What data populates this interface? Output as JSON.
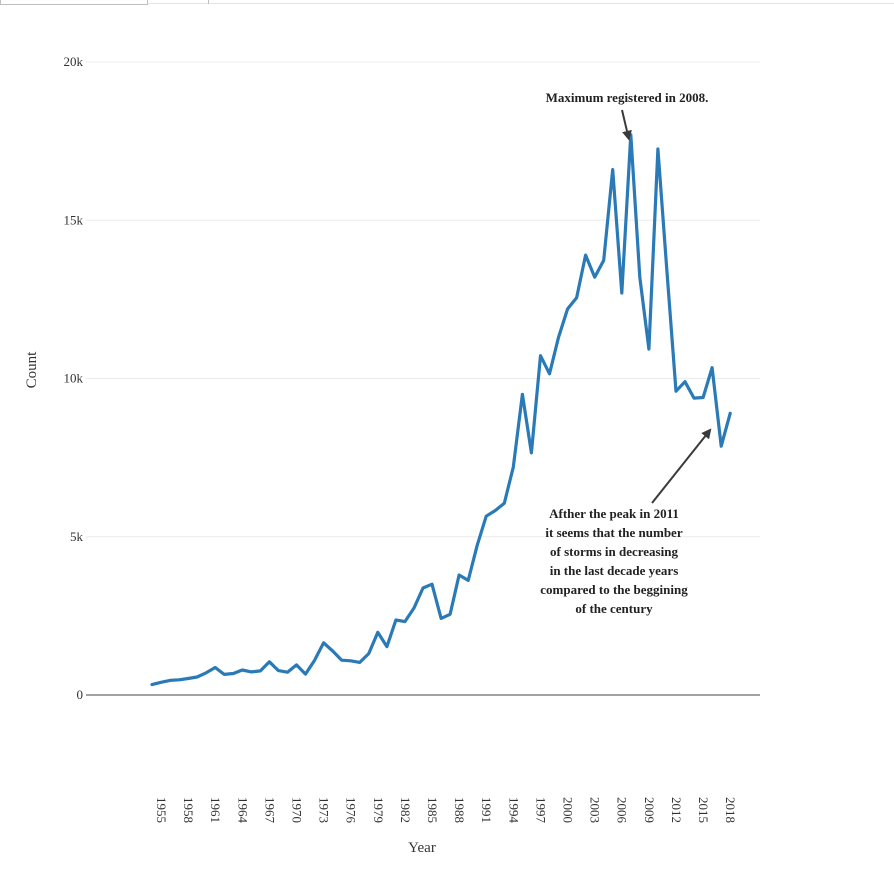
{
  "chart_data": {
    "type": "line",
    "xlabel": "Year",
    "ylabel": "Count",
    "ylim": [
      0,
      20000
    ],
    "yticks": [
      0,
      5000,
      10000,
      15000,
      20000
    ],
    "ytick_labels": [
      "0",
      "5k",
      "10k",
      "15k",
      "20k"
    ],
    "xticks": [
      1955,
      1958,
      1961,
      1964,
      1967,
      1970,
      1973,
      1976,
      1979,
      1982,
      1985,
      1988,
      1991,
      1994,
      1997,
      2000,
      2003,
      2006,
      2009,
      2012,
      2015,
      2018
    ],
    "grid": true,
    "line_color": "#2a7ab8",
    "series": [
      {
        "x": [
          1955,
          1956,
          1957,
          1958,
          1959,
          1960,
          1961,
          1962,
          1963,
          1964,
          1965,
          1966,
          1967,
          1968,
          1969,
          1970,
          1971,
          1972,
          1973,
          1974,
          1975,
          1976,
          1977,
          1978,
          1979,
          1980,
          1981,
          1982,
          1983,
          1984,
          1985,
          1986,
          1987,
          1988,
          1989,
          1990,
          1991,
          1992,
          1993,
          1994,
          1995,
          1996,
          1997,
          1998,
          1999,
          2000,
          2001,
          2002,
          2003,
          2004,
          2005,
          2006,
          2007,
          2008,
          2009,
          2010,
          2011,
          2012,
          2013,
          2014,
          2015,
          2016,
          2017,
          2018,
          2019,
          2020
        ],
        "values": [
          330,
          400,
          460,
          480,
          520,
          570,
          700,
          870,
          650,
          680,
          790,
          730,
          760,
          1050,
          770,
          720,
          950,
          660,
          1100,
          1650,
          1390,
          1100,
          1080,
          1030,
          1310,
          1980,
          1530,
          2370,
          2320,
          2750,
          3380,
          3500,
          2420,
          2550,
          3790,
          3620,
          4730,
          5650,
          5830,
          6060,
          7200,
          9500,
          7650,
          10720,
          10150,
          11300,
          12200,
          12550,
          13900,
          13200,
          13730,
          16600,
          12700,
          17700,
          13200,
          10930,
          17250,
          13400,
          9600,
          9900,
          9380,
          9400,
          10340,
          7860,
          8900,
          null
        ],
        "y": null
      }
    ],
    "annotations": [
      {
        "text": "Maximum registered in 2008.",
        "x": 2008,
        "y": 17700
      },
      {
        "text_lines": [
          "Afther the peak  in 2011",
          "it seems that the number",
          "of storms in decreasing",
          "in the last decade years",
          "compared to the beggining",
          "of the century"
        ],
        "x": 2017,
        "y": 8500
      }
    ]
  }
}
